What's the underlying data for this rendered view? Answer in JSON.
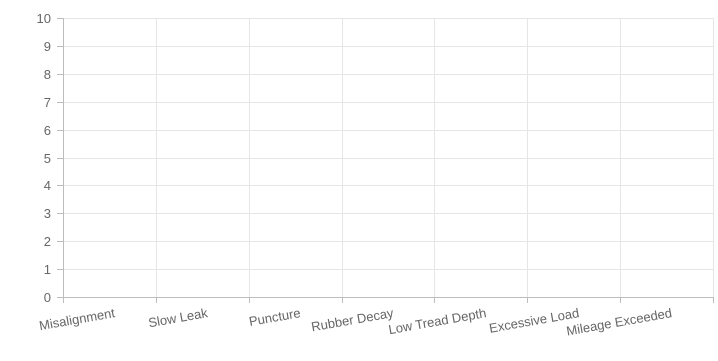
{
  "chart_data": {
    "type": "bar",
    "categories": [
      "Misalignment",
      "Slow Leak",
      "Puncture",
      "Rubber Decay",
      "Low Tread Depth",
      "Excessive Load",
      "Mileage Exceeded"
    ],
    "values": [
      0,
      0,
      0,
      0,
      0,
      0,
      0
    ],
    "title": "",
    "xlabel": "",
    "ylabel": "",
    "ylim": [
      0,
      10
    ],
    "yticks": [
      "0",
      "1",
      "2",
      "3",
      "4",
      "5",
      "6",
      "7",
      "8",
      "9",
      "10"
    ],
    "grid": true,
    "legend": "none",
    "colors": {
      "grid": "#e6e6e6",
      "axis": "#bdbdbd",
      "tick_label": "#666666",
      "bar": "#4e79a7"
    }
  }
}
